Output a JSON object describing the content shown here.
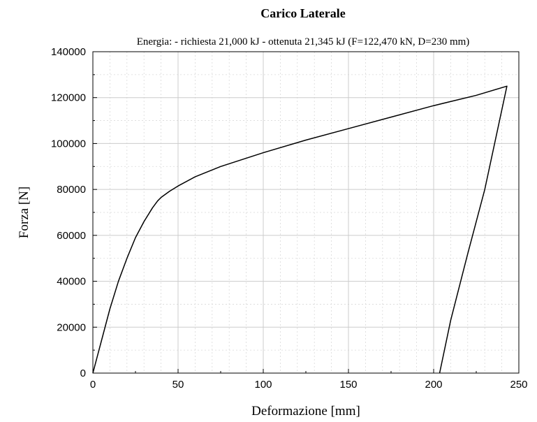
{
  "chart_data": {
    "type": "line",
    "title": "Carico Laterale",
    "subtitle": "Energia: - richiesta 21,000 kJ - ottenuta 21,345 kJ (F=122,470 kN, D=230 mm)",
    "xlabel": "Deformazione [mm]",
    "ylabel": "Forza [N]",
    "xlim": [
      0,
      250
    ],
    "ylim": [
      0,
      140000
    ],
    "x_ticks": [
      0,
      50,
      100,
      150,
      200,
      250
    ],
    "y_ticks": [
      0,
      20000,
      40000,
      60000,
      80000,
      100000,
      120000,
      140000
    ],
    "x_tick_labels": [
      "0",
      "50",
      "100",
      "150",
      "200",
      "250"
    ],
    "y_tick_labels": [
      "0",
      "20000",
      "40000",
      "60000",
      "80000",
      "100000",
      "120000",
      "140000"
    ],
    "grid": true,
    "series": [
      {
        "color": "#000000",
        "x": [
          0,
          5,
          10,
          15,
          20,
          25,
          30,
          35,
          38,
          40,
          45,
          50,
          60,
          75,
          100,
          125,
          150,
          175,
          200,
          225,
          243,
          230,
          220,
          210,
          203.5
        ],
        "y": [
          0,
          14000,
          28000,
          40000,
          50000,
          59000,
          66000,
          72000,
          75000,
          76500,
          79200,
          81500,
          85500,
          90000,
          96000,
          101500,
          106500,
          111500,
          116500,
          121000,
          125000,
          80000,
          52000,
          23000,
          0
        ]
      }
    ]
  }
}
